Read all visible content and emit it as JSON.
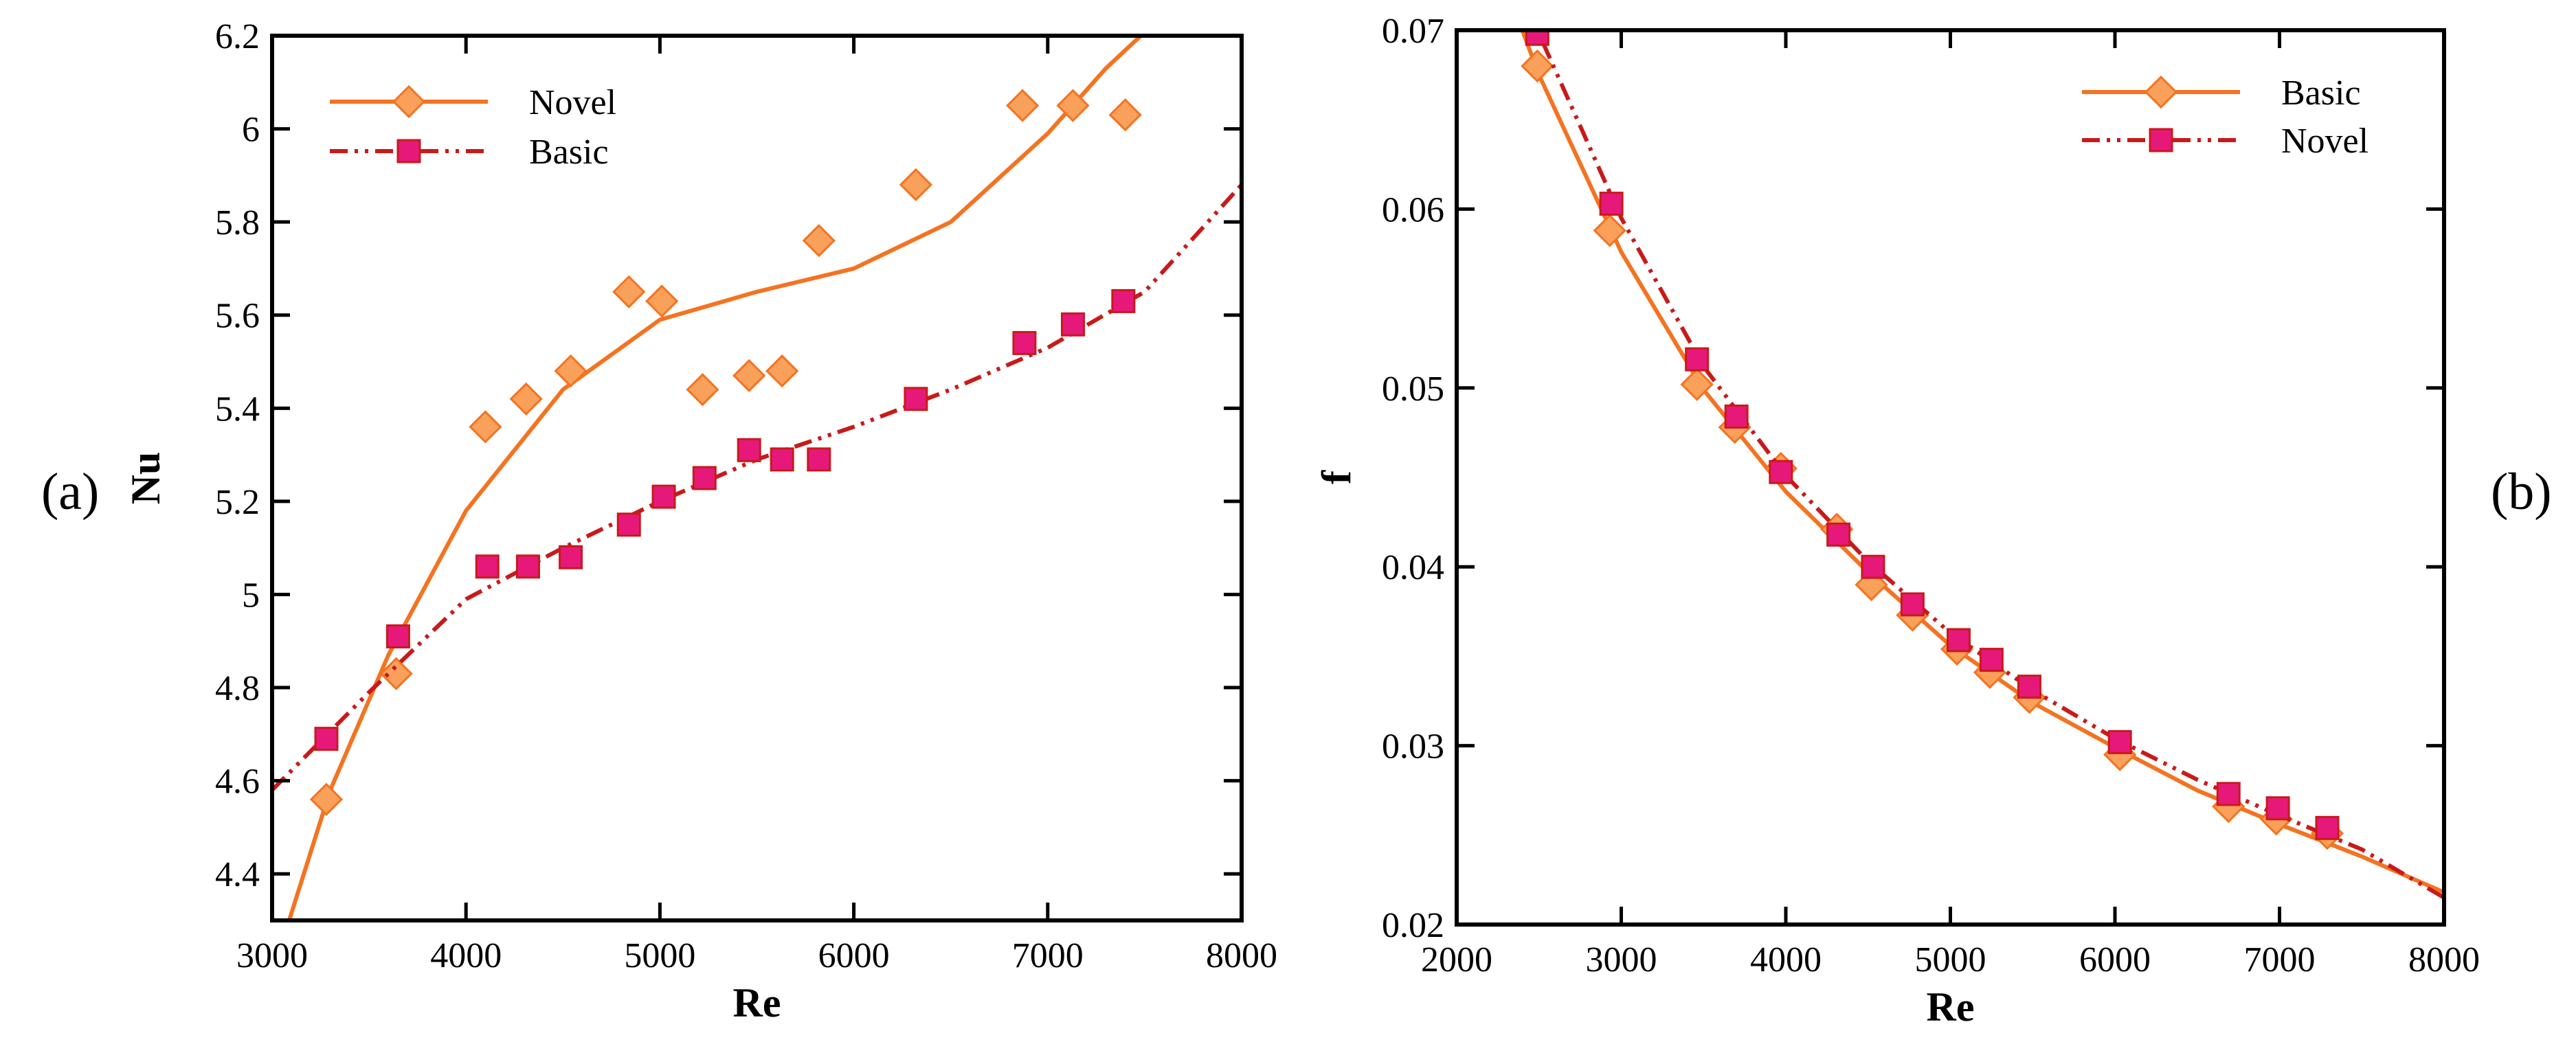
{
  "chart_data": [
    {
      "type": "scatter",
      "panel_label": "(a)",
      "xlabel": "Re",
      "ylabel": "Nu",
      "xlim": [
        3000,
        8000
      ],
      "ylim": [
        4.3,
        6.2
      ],
      "xticks": [
        3000,
        4000,
        5000,
        6000,
        7000,
        8000
      ],
      "yticks": [
        4.4,
        4.6,
        4.8,
        5,
        5.2,
        5.4,
        5.6,
        5.8,
        6,
        6.2
      ],
      "legend_position": "top-left",
      "series": [
        {
          "name": "Novel",
          "marker": "diamond",
          "color": "#f47321",
          "marker_fill": "#f9a05a",
          "line_style": "solid",
          "points": [
            [
              3280,
              4.56
            ],
            [
              3640,
              4.83
            ],
            [
              4100,
              5.36
            ],
            [
              4310,
              5.42
            ],
            [
              4540,
              5.48
            ],
            [
              4840,
              5.65
            ],
            [
              5010,
              5.63
            ],
            [
              5220,
              5.44
            ],
            [
              5460,
              5.47
            ],
            [
              5630,
              5.48
            ],
            [
              5820,
              5.76
            ],
            [
              6320,
              5.88
            ],
            [
              6870,
              6.05
            ],
            [
              7130,
              6.05
            ],
            [
              7400,
              6.03
            ]
          ],
          "fit": [
            [
              3050,
              4.25
            ],
            [
              3300,
              4.58
            ],
            [
              3600,
              4.87
            ],
            [
              4000,
              5.18
            ],
            [
              4500,
              5.44
            ],
            [
              5000,
              5.59
            ],
            [
              5500,
              5.65
            ],
            [
              6000,
              5.7
            ],
            [
              6500,
              5.8
            ],
            [
              7000,
              5.99
            ],
            [
              7300,
              6.13
            ],
            [
              7480,
              6.2
            ]
          ]
        },
        {
          "name": "Basic",
          "marker": "square",
          "color": "#c81a1a",
          "marker_fill": "#e6197a",
          "line_style": "dash-dot-dot",
          "points": [
            [
              3280,
              4.69
            ],
            [
              3650,
              4.91
            ],
            [
              4110,
              5.06
            ],
            [
              4320,
              5.06
            ],
            [
              4540,
              5.08
            ],
            [
              4840,
              5.15
            ],
            [
              5020,
              5.21
            ],
            [
              5230,
              5.25
            ],
            [
              5460,
              5.31
            ],
            [
              5630,
              5.29
            ],
            [
              5820,
              5.29
            ],
            [
              6320,
              5.42
            ],
            [
              6880,
              5.54
            ],
            [
              7130,
              5.58
            ],
            [
              7390,
              5.63
            ]
          ],
          "fit": [
            [
              3000,
              4.58
            ],
            [
              3500,
              4.79
            ],
            [
              4000,
              4.99
            ],
            [
              4500,
              5.1
            ],
            [
              5000,
              5.2
            ],
            [
              5500,
              5.29
            ],
            [
              6000,
              5.36
            ],
            [
              6500,
              5.44
            ],
            [
              7000,
              5.53
            ],
            [
              7500,
              5.65
            ],
            [
              8000,
              5.88
            ]
          ]
        }
      ]
    },
    {
      "type": "scatter",
      "panel_label": "(b)",
      "xlabel": "Re",
      "ylabel": "f",
      "xlim": [
        2000,
        8000
      ],
      "ylim": [
        0.02,
        0.07
      ],
      "xticks": [
        2000,
        3000,
        4000,
        5000,
        6000,
        7000,
        8000
      ],
      "yticks": [
        0.02,
        0.03,
        0.04,
        0.05,
        0.06,
        0.07
      ],
      "legend_position": "top-right",
      "series": [
        {
          "name": "Basic",
          "marker": "diamond",
          "color": "#f47321",
          "marker_fill": "#f9a05a",
          "line_style": "solid",
          "points": [
            [
              2490,
              0.068
            ],
            [
              2930,
              0.0588
            ],
            [
              3460,
              0.0502
            ],
            [
              3690,
              0.0478
            ],
            [
              3970,
              0.0455
            ],
            [
              4310,
              0.0421
            ],
            [
              4520,
              0.039
            ],
            [
              4770,
              0.0373
            ],
            [
              5040,
              0.0354
            ],
            [
              5240,
              0.0341
            ],
            [
              5480,
              0.0327
            ],
            [
              6030,
              0.0295
            ],
            [
              6690,
              0.0266
            ],
            [
              6980,
              0.0259
            ],
            [
              7290,
              0.0251
            ]
          ],
          "fit": [
            [
              2350,
              0.0712
            ],
            [
              2500,
              0.0675
            ],
            [
              3000,
              0.0576
            ],
            [
              3500,
              0.0499
            ],
            [
              4000,
              0.0442
            ],
            [
              4500,
              0.0397
            ],
            [
              5000,
              0.0356
            ],
            [
              5500,
              0.0324
            ],
            [
              6000,
              0.0299
            ],
            [
              6500,
              0.0275
            ],
            [
              7000,
              0.0256
            ],
            [
              7500,
              0.0238
            ],
            [
              8000,
              0.0218
            ]
          ]
        },
        {
          "name": "Novel",
          "marker": "square",
          "color": "#c81a1a",
          "marker_fill": "#e6197a",
          "line_style": "dash-dot-dot",
          "points": [
            [
              2490,
              0.0698
            ],
            [
              2940,
              0.0603
            ],
            [
              3460,
              0.0516
            ],
            [
              3700,
              0.0484
            ],
            [
              3970,
              0.0453
            ],
            [
              4320,
              0.0418
            ],
            [
              4530,
              0.04
            ],
            [
              4770,
              0.0379
            ],
            [
              5050,
              0.0359
            ],
            [
              5250,
              0.0348
            ],
            [
              5480,
              0.0333
            ],
            [
              6030,
              0.0302
            ],
            [
              6690,
              0.0273
            ],
            [
              6990,
              0.0265
            ],
            [
              7290,
              0.0254
            ]
          ],
          "fit": [
            [
              2400,
              0.0716
            ],
            [
              2500,
              0.0698
            ],
            [
              3000,
              0.0595
            ],
            [
              3500,
              0.0512
            ],
            [
              4000,
              0.0451
            ],
            [
              4500,
              0.0403
            ],
            [
              5000,
              0.0363
            ],
            [
              5500,
              0.0331
            ],
            [
              6000,
              0.0304
            ],
            [
              6500,
              0.0281
            ],
            [
              7000,
              0.0261
            ],
            [
              7500,
              0.0242
            ],
            [
              8000,
              0.0215
            ]
          ]
        }
      ]
    }
  ]
}
